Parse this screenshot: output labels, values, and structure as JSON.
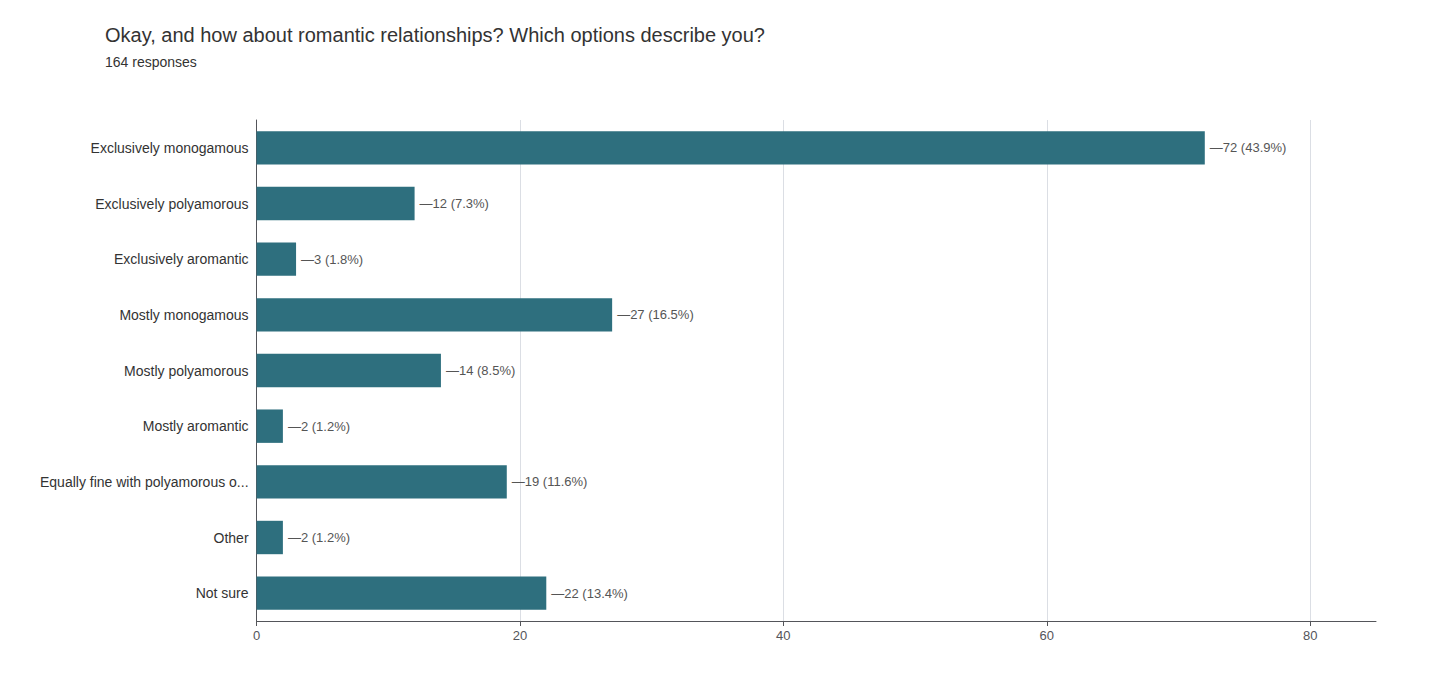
{
  "chart_data": {
    "type": "bar",
    "orientation": "horizontal",
    "title": "Okay, and how about romantic relationships? Which options describe you?",
    "subtitle": "164 responses",
    "categories": [
      "Exclusively monogamous",
      "Exclusively polyamorous",
      "Exclusively aromantic",
      "Mostly monogamous",
      "Mostly polyamorous",
      "Mostly aromantic",
      "Equally fine with polyamorous o...",
      "Other",
      "Not sure"
    ],
    "values": [
      72,
      12,
      3,
      27,
      14,
      2,
      19,
      2,
      22
    ],
    "value_labels": [
      "—72 (43.9%)",
      "—12 (7.3%)",
      "—3 (1.8%)",
      "—27 (16.5%)",
      "—14 (8.5%)",
      "—2 (1.2%)",
      "—19 (11.6%)",
      "—2 (1.2%)",
      "—22 (13.4%)"
    ],
    "data_labels": true,
    "color": "#2e6f7e",
    "xlim": [
      0,
      85
    ],
    "xticks": [
      0,
      20,
      40,
      60,
      80
    ],
    "grid": true
  }
}
